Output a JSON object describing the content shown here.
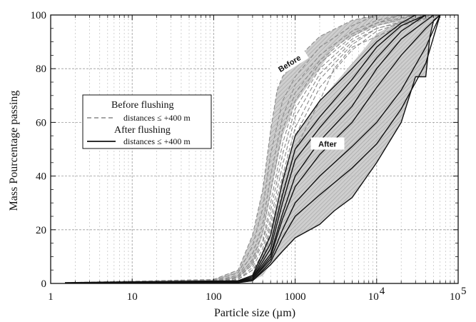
{
  "chart_data": {
    "type": "line",
    "xlabel": "Particle size (µm)",
    "ylabel": "Mass Pourcentage passing",
    "xscale": "log",
    "xlim": [
      1,
      100000
    ],
    "ylim": [
      0,
      100
    ],
    "grid": true,
    "x_tick_labels": [
      "1",
      "10",
      "100",
      "1000",
      "10",
      "10",
      "4",
      "5"
    ],
    "y_tick_labels": [
      "0",
      "20",
      "40",
      "60",
      "80",
      "100"
    ],
    "legend": {
      "placement": "upper-left",
      "entries": [
        {
          "heading": "Before flushing",
          "label": "distances ≤ +400 m",
          "style": "dashed",
          "color": "#888888"
        },
        {
          "heading": "After flushing",
          "label": "distances ≤ +400 m",
          "style": "solid",
          "color": "#111111"
        }
      ]
    },
    "annotations": [
      {
        "text": "Before",
        "x": 850,
        "y": 82
      },
      {
        "text": "After",
        "x": 2500,
        "y": 52
      }
    ],
    "envelopes": [
      {
        "name": "before-envelope",
        "color": "#bdbdbd",
        "upper": [
          [
            1.5,
            0.5
          ],
          [
            100,
            1.5
          ],
          [
            200,
            5
          ],
          [
            300,
            18
          ],
          [
            400,
            35
          ],
          [
            500,
            57
          ],
          [
            600,
            72
          ],
          [
            700,
            77
          ],
          [
            1000,
            83
          ],
          [
            2000,
            92
          ],
          [
            5000,
            98
          ],
          [
            10000,
            100
          ],
          [
            60000,
            100
          ]
        ],
        "lower": [
          [
            60000,
            100
          ],
          [
            10000,
            96
          ],
          [
            5000,
            92
          ],
          [
            3000,
            88
          ],
          [
            2000,
            80
          ],
          [
            1000,
            67
          ],
          [
            700,
            55
          ],
          [
            500,
            33
          ],
          [
            400,
            18
          ],
          [
            300,
            7
          ],
          [
            200,
            2
          ],
          [
            100,
            0.8
          ],
          [
            1.5,
            0.3
          ]
        ]
      },
      {
        "name": "after-envelope",
        "color": "#a8a8a8",
        "upper": [
          [
            1.5,
            0.3
          ],
          [
            200,
            1
          ],
          [
            300,
            3
          ],
          [
            500,
            18
          ],
          [
            700,
            38
          ],
          [
            1000,
            55
          ],
          [
            2000,
            68
          ],
          [
            5000,
            82
          ],
          [
            10000,
            93
          ],
          [
            20000,
            98
          ],
          [
            40000,
            100
          ],
          [
            60000,
            100
          ]
        ],
        "lower": [
          [
            60000,
            100
          ],
          [
            50000,
            98
          ],
          [
            45000,
            92
          ],
          [
            40000,
            77
          ],
          [
            30000,
            77
          ],
          [
            20000,
            60
          ],
          [
            10000,
            45
          ],
          [
            5000,
            32
          ],
          [
            3000,
            27
          ],
          [
            2000,
            22
          ],
          [
            1000,
            17
          ],
          [
            700,
            12
          ],
          [
            500,
            7
          ],
          [
            400,
            3
          ],
          [
            300,
            1
          ],
          [
            200,
            0.3
          ],
          [
            1.5,
            0
          ]
        ]
      }
    ],
    "series": [
      {
        "group": "before",
        "style": "dashed",
        "color": "#8a8a8a",
        "points": [
          [
            1.5,
            0.3
          ],
          [
            100,
            1.5
          ],
          [
            200,
            5
          ],
          [
            300,
            18
          ],
          [
            400,
            35
          ],
          [
            500,
            57
          ],
          [
            600,
            72
          ],
          [
            700,
            77
          ],
          [
            1000,
            83
          ],
          [
            2000,
            92
          ],
          [
            5000,
            98
          ],
          [
            10000,
            100
          ]
        ]
      },
      {
        "group": "before",
        "style": "dashed",
        "color": "#8a8a8a",
        "points": [
          [
            1.5,
            0.3
          ],
          [
            100,
            1.2
          ],
          [
            200,
            4
          ],
          [
            300,
            14
          ],
          [
            400,
            28
          ],
          [
            500,
            48
          ],
          [
            700,
            68
          ],
          [
            1000,
            77
          ],
          [
            2000,
            88
          ],
          [
            5000,
            96
          ],
          [
            10000,
            100
          ]
        ]
      },
      {
        "group": "before",
        "style": "dashed",
        "color": "#8a8a8a",
        "points": [
          [
            1.5,
            0.2
          ],
          [
            100,
            1
          ],
          [
            200,
            3
          ],
          [
            300,
            11
          ],
          [
            400,
            22
          ],
          [
            500,
            40
          ],
          [
            700,
            62
          ],
          [
            1000,
            74
          ],
          [
            2000,
            85
          ],
          [
            5000,
            94
          ],
          [
            10000,
            98
          ],
          [
            20000,
            100
          ]
        ]
      },
      {
        "group": "before",
        "style": "dashed",
        "color": "#8a8a8a",
        "points": [
          [
            1.5,
            0.2
          ],
          [
            100,
            0.8
          ],
          [
            200,
            2.5
          ],
          [
            300,
            9
          ],
          [
            400,
            19
          ],
          [
            500,
            34
          ],
          [
            700,
            57
          ],
          [
            1000,
            71
          ],
          [
            2000,
            83
          ],
          [
            5000,
            93
          ],
          [
            10000,
            97
          ],
          [
            20000,
            100
          ]
        ]
      },
      {
        "group": "before",
        "style": "dashed",
        "color": "#8a8a8a",
        "points": [
          [
            1.5,
            0.2
          ],
          [
            100,
            0.8
          ],
          [
            200,
            2
          ],
          [
            300,
            8
          ],
          [
            400,
            16
          ],
          [
            500,
            30
          ],
          [
            700,
            52
          ],
          [
            1000,
            68
          ],
          [
            2000,
            82
          ],
          [
            5000,
            92
          ],
          [
            10000,
            97
          ],
          [
            30000,
            100
          ]
        ]
      },
      {
        "group": "before",
        "style": "dashed",
        "color": "#8a8a8a",
        "points": [
          [
            1.5,
            0.1
          ],
          [
            100,
            0.6
          ],
          [
            200,
            2
          ],
          [
            300,
            7
          ],
          [
            400,
            15
          ],
          [
            500,
            27
          ],
          [
            700,
            48
          ],
          [
            1000,
            65
          ],
          [
            2000,
            80
          ],
          [
            5000,
            91
          ],
          [
            10000,
            96
          ],
          [
            30000,
            100
          ]
        ]
      },
      {
        "group": "before",
        "style": "dashed",
        "color": "#8a8a8a",
        "points": [
          [
            1.5,
            0.1
          ],
          [
            100,
            0.5
          ],
          [
            200,
            1.5
          ],
          [
            300,
            6
          ],
          [
            400,
            13
          ],
          [
            500,
            24
          ],
          [
            700,
            44
          ],
          [
            1000,
            62
          ],
          [
            2000,
            78
          ],
          [
            5000,
            90
          ],
          [
            10000,
            95
          ],
          [
            40000,
            100
          ]
        ]
      },
      {
        "group": "before",
        "style": "dashed",
        "color": "#8a8a8a",
        "points": [
          [
            1.5,
            0.1
          ],
          [
            100,
            0.5
          ],
          [
            200,
            1.5
          ],
          [
            300,
            5
          ],
          [
            400,
            11
          ],
          [
            500,
            22
          ],
          [
            700,
            40
          ],
          [
            1000,
            58
          ],
          [
            2000,
            76
          ],
          [
            5000,
            89
          ],
          [
            10000,
            95
          ],
          [
            50000,
            100
          ]
        ]
      },
      {
        "group": "before",
        "style": "dashed",
        "color": "#8a8a8a",
        "points": [
          [
            1.5,
            0.1
          ],
          [
            100,
            0.5
          ],
          [
            200,
            1.5
          ],
          [
            300,
            5
          ],
          [
            400,
            10
          ],
          [
            500,
            20
          ],
          [
            700,
            37
          ],
          [
            1000,
            55
          ],
          [
            2000,
            73
          ],
          [
            5000,
            87
          ],
          [
            10000,
            94
          ],
          [
            20000,
            97
          ],
          [
            60000,
            100
          ]
        ]
      },
      {
        "group": "before",
        "style": "dashed",
        "color": "#8a8a8a",
        "points": [
          [
            1.5,
            0.1
          ],
          [
            100,
            0.5
          ],
          [
            200,
            1.5
          ],
          [
            300,
            5
          ],
          [
            400,
            9
          ],
          [
            500,
            18
          ],
          [
            700,
            34
          ],
          [
            1000,
            50
          ],
          [
            2000,
            68
          ],
          [
            3000,
            80
          ],
          [
            5000,
            88
          ],
          [
            10000,
            92
          ],
          [
            20000,
            96
          ],
          [
            60000,
            100
          ]
        ]
      },
      {
        "group": "after",
        "style": "solid",
        "color": "#111111",
        "points": [
          [
            1.5,
            0.3
          ],
          [
            200,
            1
          ],
          [
            300,
            3
          ],
          [
            500,
            18
          ],
          [
            700,
            38
          ],
          [
            1000,
            55
          ],
          [
            2000,
            68
          ],
          [
            5000,
            80
          ],
          [
            10000,
            90
          ],
          [
            20000,
            97
          ],
          [
            30000,
            100
          ]
        ]
      },
      {
        "group": "after",
        "style": "solid",
        "color": "#111111",
        "points": [
          [
            1.5,
            0.2
          ],
          [
            200,
            0.8
          ],
          [
            300,
            2.5
          ],
          [
            500,
            15
          ],
          [
            700,
            33
          ],
          [
            1000,
            50
          ],
          [
            2000,
            62
          ],
          [
            5000,
            76
          ],
          [
            10000,
            88
          ],
          [
            20000,
            96
          ],
          [
            40000,
            100
          ]
        ]
      },
      {
        "group": "after",
        "style": "solid",
        "color": "#111111",
        "points": [
          [
            1.5,
            0.2
          ],
          [
            200,
            0.7
          ],
          [
            300,
            2
          ],
          [
            500,
            13
          ],
          [
            700,
            30
          ],
          [
            1000,
            46
          ],
          [
            2000,
            58
          ],
          [
            5000,
            72
          ],
          [
            10000,
            84
          ],
          [
            20000,
            94
          ],
          [
            40000,
            100
          ]
        ]
      },
      {
        "group": "after",
        "style": "solid",
        "color": "#111111",
        "points": [
          [
            1.5,
            0.1
          ],
          [
            200,
            0.6
          ],
          [
            300,
            2
          ],
          [
            500,
            11
          ],
          [
            700,
            26
          ],
          [
            1000,
            40
          ],
          [
            2000,
            53
          ],
          [
            5000,
            66
          ],
          [
            10000,
            80
          ],
          [
            20000,
            91
          ],
          [
            50000,
            100
          ]
        ]
      },
      {
        "group": "after",
        "style": "solid",
        "color": "#111111",
        "points": [
          [
            1.5,
            0.1
          ],
          [
            200,
            0.5
          ],
          [
            300,
            1.5
          ],
          [
            500,
            10
          ],
          [
            700,
            24
          ],
          [
            1000,
            36
          ],
          [
            2000,
            48
          ],
          [
            5000,
            60
          ],
          [
            10000,
            73
          ],
          [
            20000,
            85
          ],
          [
            40000,
            95
          ],
          [
            60000,
            100
          ]
        ]
      },
      {
        "group": "after",
        "style": "solid",
        "color": "#111111",
        "points": [
          [
            1.5,
            0.1
          ],
          [
            200,
            0.5
          ],
          [
            300,
            1.5
          ],
          [
            500,
            9
          ],
          [
            700,
            20
          ],
          [
            1000,
            30
          ],
          [
            2000,
            40
          ],
          [
            5000,
            51
          ],
          [
            10000,
            60
          ],
          [
            20000,
            72
          ],
          [
            40000,
            88
          ],
          [
            60000,
            100
          ]
        ]
      },
      {
        "group": "after",
        "style": "solid",
        "color": "#111111",
        "points": [
          [
            1.5,
            0.1
          ],
          [
            200,
            0.4
          ],
          [
            300,
            1
          ],
          [
            500,
            8
          ],
          [
            700,
            17
          ],
          [
            1000,
            25
          ],
          [
            2000,
            33
          ],
          [
            5000,
            43
          ],
          [
            10000,
            52
          ],
          [
            20000,
            65
          ],
          [
            40000,
            82
          ],
          [
            60000,
            100
          ]
        ]
      },
      {
        "group": "after",
        "style": "solid",
        "color": "#111111",
        "points": [
          [
            1.5,
            0
          ],
          [
            200,
            0.3
          ],
          [
            300,
            1
          ],
          [
            500,
            7
          ],
          [
            700,
            12
          ],
          [
            1000,
            17
          ],
          [
            2000,
            22
          ],
          [
            3000,
            27
          ],
          [
            5000,
            32
          ],
          [
            10000,
            45
          ],
          [
            20000,
            60
          ],
          [
            30000,
            77
          ],
          [
            40000,
            77
          ],
          [
            45000,
            92
          ],
          [
            50000,
            98
          ],
          [
            60000,
            100
          ]
        ]
      }
    ]
  }
}
